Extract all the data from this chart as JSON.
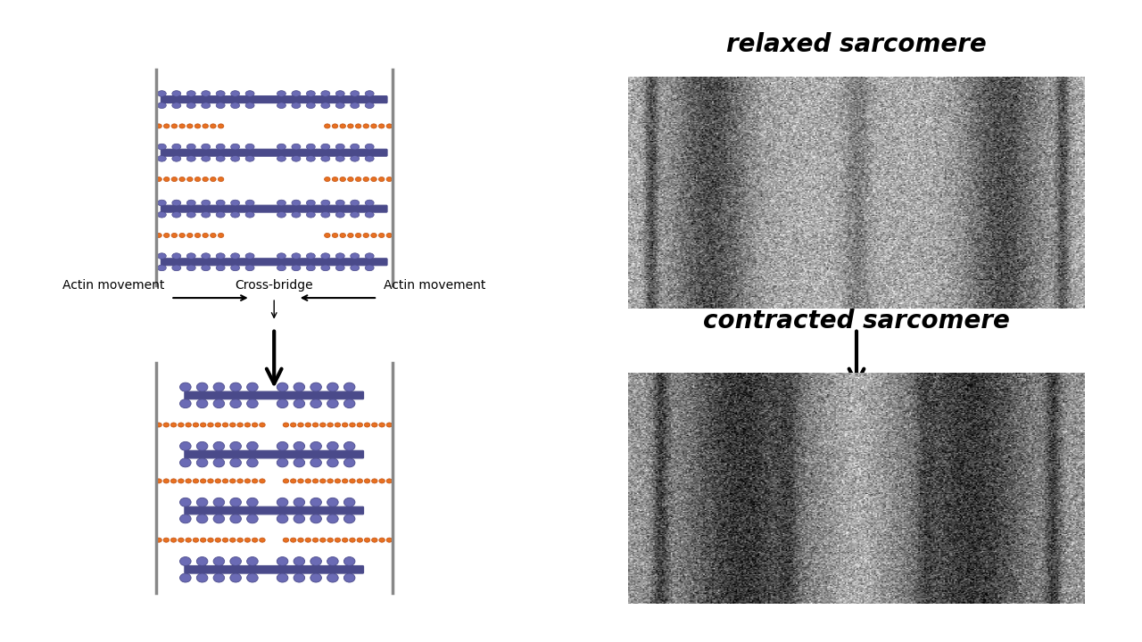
{
  "bg_color": "#ffffff",
  "title_relaxed": "relaxed sarcomere",
  "title_contracted": "contracted sarcomere",
  "label_actin_left": "Actin movement",
  "label_actin_right": "Actin movement",
  "label_crossbridge": "Cross-bridge",
  "myosin_color": "#6B6BB5",
  "myosin_dark": "#4a4a8a",
  "actin_color": "#E87020",
  "actin_dark": "#c05010",
  "zline_color": "#888888",
  "arrow_color": "#111111",
  "text_color": "#000000",
  "title_fontsize": 20,
  "label_fontsize": 11
}
